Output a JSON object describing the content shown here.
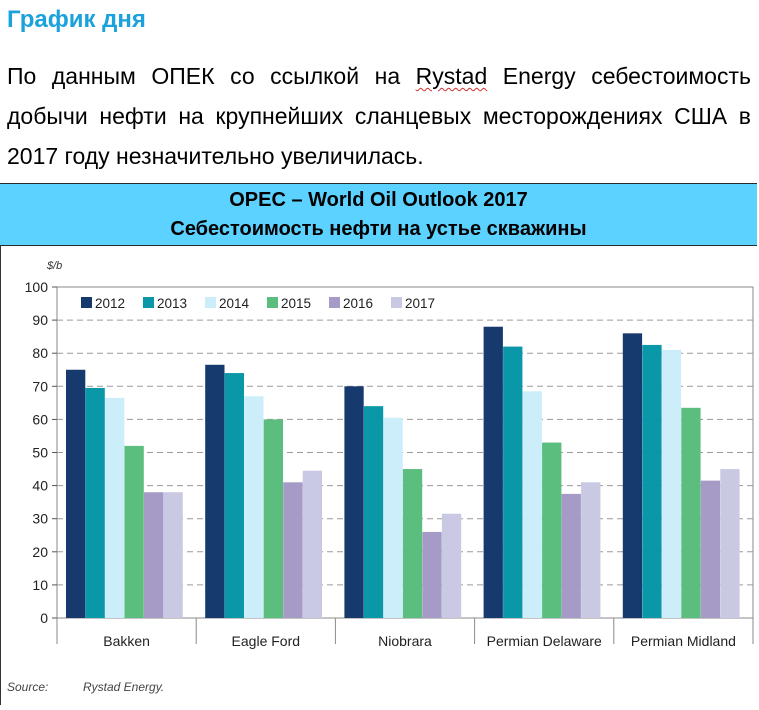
{
  "page": {
    "heading": "График дня",
    "lead_before": "По данным ОПЕК со ссылкой на ",
    "lead_underlined": "Rystad",
    "lead_after": " Energy себестоимость добычи нефти на крупнейших сланцевых месторождениях США в 2017 году незначительно увеличилась.",
    "banner_line1": "OPEC – World Oil Outlook 2017",
    "banner_line2": "Себестоимость нефти на устье скважины",
    "source_label": "Source:",
    "source_value": "Rystad Energy."
  },
  "chart_data": {
    "type": "bar",
    "title": "",
    "ylabel": "$/b",
    "xlabel": "",
    "ylim": [
      0,
      100
    ],
    "yticks": [
      0,
      10,
      20,
      30,
      40,
      50,
      60,
      70,
      80,
      90,
      100
    ],
    "grid": "horizontal-dashed",
    "legend_position": "top-left",
    "categories": [
      "Bakken",
      "Eagle Ford",
      "Niobrara",
      "Permian Delaware",
      "Permian Midland"
    ],
    "series": [
      {
        "name": "2012",
        "color": "#173a6e",
        "values": [
          75,
          76.5,
          70,
          88,
          86
        ]
      },
      {
        "name": "2013",
        "color": "#0a97a8",
        "values": [
          69.5,
          74,
          64,
          82,
          82.5
        ]
      },
      {
        "name": "2014",
        "color": "#cbeefa",
        "values": [
          66.5,
          67,
          60.5,
          68.5,
          81
        ]
      },
      {
        "name": "2015",
        "color": "#5bbd7e",
        "values": [
          52,
          60,
          45,
          53,
          63.5
        ]
      },
      {
        "name": "2016",
        "color": "#a59bc6",
        "values": [
          38,
          41,
          26,
          37.5,
          41.5
        ]
      },
      {
        "name": "2017",
        "color": "#c9c9e4",
        "values": [
          38,
          44.5,
          31.5,
          41,
          45
        ]
      }
    ]
  }
}
